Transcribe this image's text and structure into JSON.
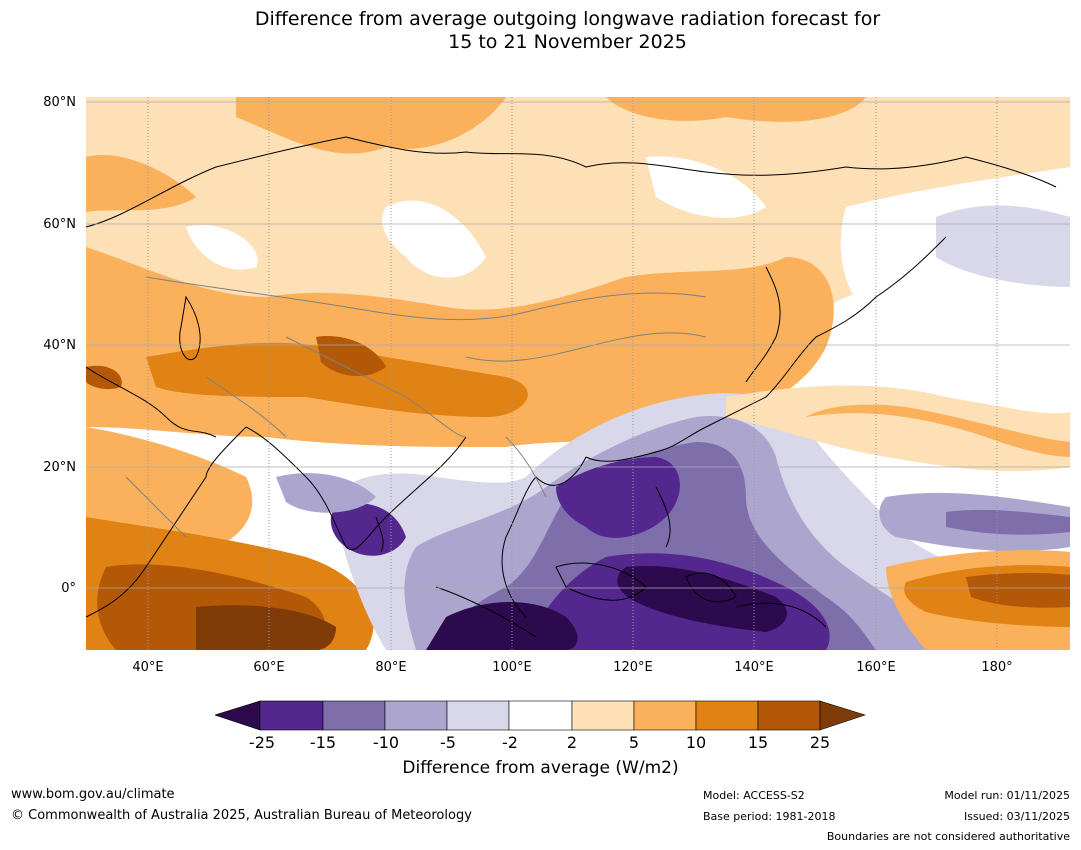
{
  "title": {
    "line1": "Difference from average outgoing longwave radiation forecast for",
    "line2": "15 to 21 November 2025"
  },
  "map": {
    "lat_labels": [
      "80°N",
      "60°N",
      "40°N",
      "20°N",
      "0°"
    ],
    "lon_labels": [
      "40°E",
      "60°E",
      "80°E",
      "100°E",
      "120°E",
      "140°E",
      "160°E",
      "180°"
    ],
    "colors": {
      "ocean_neutral": "#ffffff",
      "coast": "#000000",
      "border": "#808080",
      "grid": "#999999"
    }
  },
  "legend": {
    "ticks": [
      "-25",
      "-15",
      "-10",
      "-5",
      "-2",
      "2",
      "5",
      "10",
      "15",
      "25"
    ],
    "label": "Difference from average (W/m2)",
    "colors": [
      "#2d0a4e",
      "#54278f",
      "#7e6fab",
      "#aca6cf",
      "#d8d8ea",
      "#ffffff",
      "#fde0b6",
      "#fbb15b",
      "#e08214",
      "#b35806",
      "#7f3b08"
    ]
  },
  "footer": {
    "url": "www.bom.gov.au/climate",
    "copyright": "© Commonwealth of Australia 2025, Australian Bureau of Meteorology",
    "model": "Model: ACCESS-S2",
    "base_period": "Base period: 1981-2018",
    "model_run": "Model run: 01/11/2025",
    "issued": "Issued: 03/11/2025",
    "disclaimer": "Boundaries are not considered authoritative"
  }
}
